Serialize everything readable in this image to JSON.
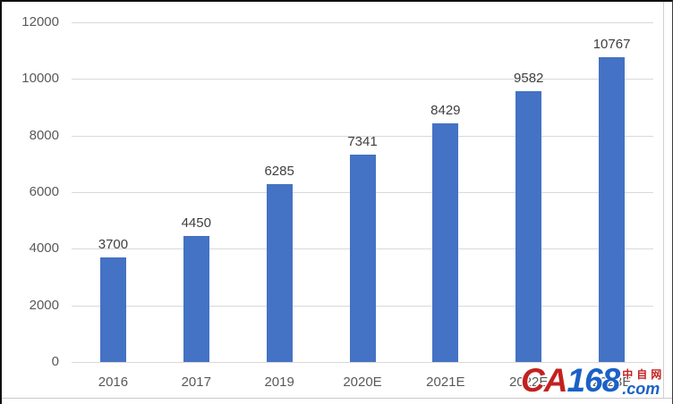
{
  "frame": {
    "background": "#ffffff",
    "outer_border_color": "#101010",
    "chart_border_color": "#cccccc"
  },
  "watermark": {
    "text_ca": "CA",
    "text_168": "168",
    "text_cn": "中自网",
    "text_com": ".com",
    "color_red": "#c32121",
    "color_blue": "#1b61c6"
  },
  "chart_data": {
    "type": "bar",
    "categories": [
      "2016",
      "2017",
      "2019",
      "2020E",
      "2021E",
      "2022E",
      "2023E"
    ],
    "values": [
      3700,
      4450,
      6285,
      7341,
      8429,
      9582,
      10767
    ],
    "data_labels": [
      "3700",
      "4450",
      "6285",
      "7341",
      "8429",
      "9582",
      "10767"
    ],
    "title": "",
    "xlabel": "",
    "ylabel": "",
    "ylim": [
      0,
      12000
    ],
    "yticks": [
      0,
      2000,
      4000,
      6000,
      8000,
      10000,
      12000
    ],
    "grid": true,
    "legend": "none",
    "bar_color": "#4472C4",
    "gridline_color": "#D9D9D9",
    "tick_label_color": "#595959",
    "data_label_color": "#3f3f3f"
  }
}
